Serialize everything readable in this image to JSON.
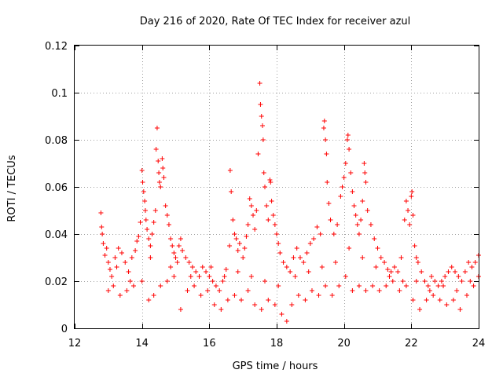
{
  "chart_data": {
    "type": "scatter",
    "title": "Day 216 of 2020, Rate Of TEC Index for receiver azul",
    "xlabel": "GPS time / hours",
    "ylabel": "ROTI / TECUs",
    "xlim": [
      12,
      24
    ],
    "ylim": [
      0,
      0.12
    ],
    "x_ticks": [
      12,
      14,
      16,
      18,
      20,
      22,
      24
    ],
    "x_tick_labels": [
      "12",
      "14",
      "16",
      "18",
      "20",
      "22",
      "24"
    ],
    "y_ticks": [
      0,
      0.02,
      0.04,
      0.06,
      0.08,
      0.1,
      0.12
    ],
    "y_tick_labels": [
      "0",
      "0.02",
      "0.04",
      "0.06",
      "0.08",
      "0.1",
      "0.12"
    ],
    "grid": true,
    "marker": "+",
    "color": "#ff0000",
    "series": [
      {
        "name": "ROTI",
        "points": [
          [
            12.78,
            0.049
          ],
          [
            12.8,
            0.043
          ],
          [
            12.82,
            0.04
          ],
          [
            12.85,
            0.036
          ],
          [
            12.9,
            0.031
          ],
          [
            12.95,
            0.034
          ],
          [
            13.0,
            0.028
          ],
          [
            13.05,
            0.025
          ],
          [
            13.1,
            0.022
          ],
          [
            13.2,
            0.03
          ],
          [
            13.3,
            0.034
          ],
          [
            13.4,
            0.032
          ],
          [
            13.5,
            0.028
          ],
          [
            13.6,
            0.024
          ],
          [
            13.7,
            0.03
          ],
          [
            13.8,
            0.033
          ],
          [
            13.85,
            0.037
          ],
          [
            13.9,
            0.039
          ],
          [
            13.95,
            0.045
          ],
          [
            14.0,
            0.067
          ],
          [
            14.02,
            0.062
          ],
          [
            14.05,
            0.058
          ],
          [
            14.08,
            0.054
          ],
          [
            14.1,
            0.05
          ],
          [
            14.12,
            0.046
          ],
          [
            14.15,
            0.042
          ],
          [
            14.2,
            0.038
          ],
          [
            14.25,
            0.035
          ],
          [
            14.3,
            0.04
          ],
          [
            14.35,
            0.045
          ],
          [
            14.4,
            0.05
          ],
          [
            14.42,
            0.076
          ],
          [
            14.45,
            0.085
          ],
          [
            14.48,
            0.071
          ],
          [
            14.5,
            0.066
          ],
          [
            14.52,
            0.062
          ],
          [
            14.55,
            0.06
          ],
          [
            14.6,
            0.072
          ],
          [
            14.62,
            0.068
          ],
          [
            14.65,
            0.064
          ],
          [
            14.7,
            0.052
          ],
          [
            14.75,
            0.048
          ],
          [
            14.8,
            0.044
          ],
          [
            14.85,
            0.038
          ],
          [
            14.9,
            0.035
          ],
          [
            14.95,
            0.032
          ],
          [
            15.0,
            0.03
          ],
          [
            15.05,
            0.028
          ],
          [
            15.1,
            0.035
          ],
          [
            15.15,
            0.038
          ],
          [
            15.2,
            0.033
          ],
          [
            15.3,
            0.03
          ],
          [
            15.4,
            0.028
          ],
          [
            15.5,
            0.026
          ],
          [
            15.6,
            0.024
          ],
          [
            15.7,
            0.022
          ],
          [
            15.8,
            0.026
          ],
          [
            15.9,
            0.024
          ],
          [
            16.0,
            0.022
          ],
          [
            16.1,
            0.02
          ],
          [
            16.2,
            0.018
          ],
          [
            16.3,
            0.016
          ],
          [
            16.4,
            0.02
          ],
          [
            16.5,
            0.025
          ],
          [
            16.6,
            0.035
          ],
          [
            16.62,
            0.067
          ],
          [
            16.65,
            0.058
          ],
          [
            16.7,
            0.046
          ],
          [
            16.75,
            0.04
          ],
          [
            16.8,
            0.038
          ],
          [
            16.85,
            0.033
          ],
          [
            16.9,
            0.036
          ],
          [
            17.0,
            0.03
          ],
          [
            17.05,
            0.034
          ],
          [
            17.1,
            0.039
          ],
          [
            17.15,
            0.044
          ],
          [
            17.2,
            0.055
          ],
          [
            17.25,
            0.052
          ],
          [
            17.3,
            0.048
          ],
          [
            17.35,
            0.042
          ],
          [
            17.4,
            0.05
          ],
          [
            17.45,
            0.074
          ],
          [
            17.5,
            0.104
          ],
          [
            17.52,
            0.095
          ],
          [
            17.55,
            0.09
          ],
          [
            17.58,
            0.086
          ],
          [
            17.6,
            0.08
          ],
          [
            17.62,
            0.066
          ],
          [
            17.65,
            0.06
          ],
          [
            17.7,
            0.052
          ],
          [
            17.75,
            0.046
          ],
          [
            17.8,
            0.063
          ],
          [
            17.82,
            0.062
          ],
          [
            17.85,
            0.054
          ],
          [
            17.9,
            0.048
          ],
          [
            17.95,
            0.044
          ],
          [
            18.0,
            0.04
          ],
          [
            18.05,
            0.036
          ],
          [
            18.1,
            0.032
          ],
          [
            18.2,
            0.028
          ],
          [
            18.3,
            0.026
          ],
          [
            18.4,
            0.024
          ],
          [
            18.5,
            0.03
          ],
          [
            18.6,
            0.034
          ],
          [
            18.7,
            0.03
          ],
          [
            18.8,
            0.028
          ],
          [
            18.9,
            0.032
          ],
          [
            19.0,
            0.036
          ],
          [
            19.1,
            0.038
          ],
          [
            19.2,
            0.043
          ],
          [
            19.3,
            0.04
          ],
          [
            19.4,
            0.085
          ],
          [
            19.42,
            0.088
          ],
          [
            19.45,
            0.08
          ],
          [
            19.48,
            0.074
          ],
          [
            19.5,
            0.062
          ],
          [
            19.55,
            0.053
          ],
          [
            19.6,
            0.046
          ],
          [
            19.7,
            0.04
          ],
          [
            19.8,
            0.044
          ],
          [
            19.9,
            0.056
          ],
          [
            19.95,
            0.06
          ],
          [
            20.0,
            0.064
          ],
          [
            20.05,
            0.07
          ],
          [
            20.1,
            0.08
          ],
          [
            20.12,
            0.082
          ],
          [
            20.15,
            0.076
          ],
          [
            20.2,
            0.066
          ],
          [
            20.25,
            0.058
          ],
          [
            20.3,
            0.052
          ],
          [
            20.35,
            0.048
          ],
          [
            20.4,
            0.044
          ],
          [
            20.45,
            0.04
          ],
          [
            20.5,
            0.046
          ],
          [
            20.55,
            0.054
          ],
          [
            20.6,
            0.07
          ],
          [
            20.62,
            0.066
          ],
          [
            20.65,
            0.062
          ],
          [
            20.7,
            0.05
          ],
          [
            20.8,
            0.044
          ],
          [
            20.9,
            0.038
          ],
          [
            21.0,
            0.034
          ],
          [
            21.1,
            0.03
          ],
          [
            21.2,
            0.028
          ],
          [
            21.3,
            0.025
          ],
          [
            21.4,
            0.024
          ],
          [
            21.5,
            0.026
          ],
          [
            21.6,
            0.024
          ],
          [
            21.7,
            0.03
          ],
          [
            21.8,
            0.046
          ],
          [
            21.85,
            0.054
          ],
          [
            21.9,
            0.05
          ],
          [
            21.95,
            0.044
          ],
          [
            22.0,
            0.056
          ],
          [
            22.02,
            0.058
          ],
          [
            22.05,
            0.048
          ],
          [
            22.1,
            0.035
          ],
          [
            22.15,
            0.03
          ],
          [
            22.2,
            0.028
          ],
          [
            22.3,
            0.024
          ],
          [
            22.4,
            0.02
          ],
          [
            22.5,
            0.018
          ],
          [
            22.6,
            0.022
          ],
          [
            22.7,
            0.02
          ],
          [
            22.8,
            0.018
          ],
          [
            22.9,
            0.02
          ],
          [
            23.0,
            0.022
          ],
          [
            23.1,
            0.024
          ],
          [
            23.2,
            0.026
          ],
          [
            23.3,
            0.024
          ],
          [
            23.4,
            0.022
          ],
          [
            23.5,
            0.02
          ],
          [
            23.6,
            0.024
          ],
          [
            23.7,
            0.028
          ],
          [
            23.8,
            0.026
          ],
          [
            23.9,
            0.028
          ],
          [
            24.0,
            0.031
          ],
          [
            13.0,
            0.016
          ],
          [
            13.15,
            0.018
          ],
          [
            13.35,
            0.014
          ],
          [
            13.55,
            0.016
          ],
          [
            13.75,
            0.018
          ],
          [
            14.0,
            0.02
          ],
          [
            14.2,
            0.012
          ],
          [
            14.35,
            0.014
          ],
          [
            14.55,
            0.018
          ],
          [
            14.75,
            0.02
          ],
          [
            14.95,
            0.022
          ],
          [
            15.15,
            0.008
          ],
          [
            15.35,
            0.016
          ],
          [
            15.55,
            0.018
          ],
          [
            15.75,
            0.014
          ],
          [
            15.95,
            0.016
          ],
          [
            16.15,
            0.01
          ],
          [
            16.35,
            0.008
          ],
          [
            16.55,
            0.012
          ],
          [
            16.75,
            0.014
          ],
          [
            16.95,
            0.012
          ],
          [
            17.15,
            0.016
          ],
          [
            17.35,
            0.01
          ],
          [
            17.55,
            0.008
          ],
          [
            17.75,
            0.012
          ],
          [
            17.95,
            0.01
          ],
          [
            18.15,
            0.006
          ],
          [
            18.3,
            0.003
          ],
          [
            18.45,
            0.01
          ],
          [
            18.65,
            0.014
          ],
          [
            18.85,
            0.012
          ],
          [
            19.05,
            0.016
          ],
          [
            19.25,
            0.014
          ],
          [
            19.45,
            0.018
          ],
          [
            19.65,
            0.014
          ],
          [
            19.85,
            0.018
          ],
          [
            20.05,
            0.022
          ],
          [
            20.25,
            0.016
          ],
          [
            20.45,
            0.018
          ],
          [
            20.65,
            0.016
          ],
          [
            20.85,
            0.018
          ],
          [
            21.05,
            0.016
          ],
          [
            21.25,
            0.018
          ],
          [
            21.45,
            0.02
          ],
          [
            21.65,
            0.016
          ],
          [
            21.85,
            0.018
          ],
          [
            22.05,
            0.012
          ],
          [
            22.25,
            0.008
          ],
          [
            22.45,
            0.012
          ],
          [
            22.65,
            0.014
          ],
          [
            22.85,
            0.012
          ],
          [
            23.05,
            0.01
          ],
          [
            23.25,
            0.012
          ],
          [
            23.45,
            0.008
          ],
          [
            23.65,
            0.014
          ],
          [
            23.85,
            0.018
          ],
          [
            24.0,
            0.022
          ],
          [
            13.25,
            0.026
          ],
          [
            13.65,
            0.02
          ],
          [
            14.25,
            0.03
          ],
          [
            14.85,
            0.026
          ],
          [
            15.45,
            0.022
          ],
          [
            16.05,
            0.026
          ],
          [
            16.45,
            0.022
          ],
          [
            16.85,
            0.024
          ],
          [
            17.25,
            0.022
          ],
          [
            17.65,
            0.02
          ],
          [
            18.05,
            0.018
          ],
          [
            18.55,
            0.022
          ],
          [
            18.95,
            0.024
          ],
          [
            19.35,
            0.026
          ],
          [
            19.75,
            0.028
          ],
          [
            20.15,
            0.034
          ],
          [
            20.55,
            0.03
          ],
          [
            20.95,
            0.026
          ],
          [
            21.35,
            0.022
          ],
          [
            21.75,
            0.02
          ],
          [
            22.15,
            0.02
          ],
          [
            22.55,
            0.016
          ],
          [
            22.95,
            0.018
          ],
          [
            23.35,
            0.016
          ],
          [
            23.75,
            0.02
          ]
        ]
      }
    ]
  }
}
